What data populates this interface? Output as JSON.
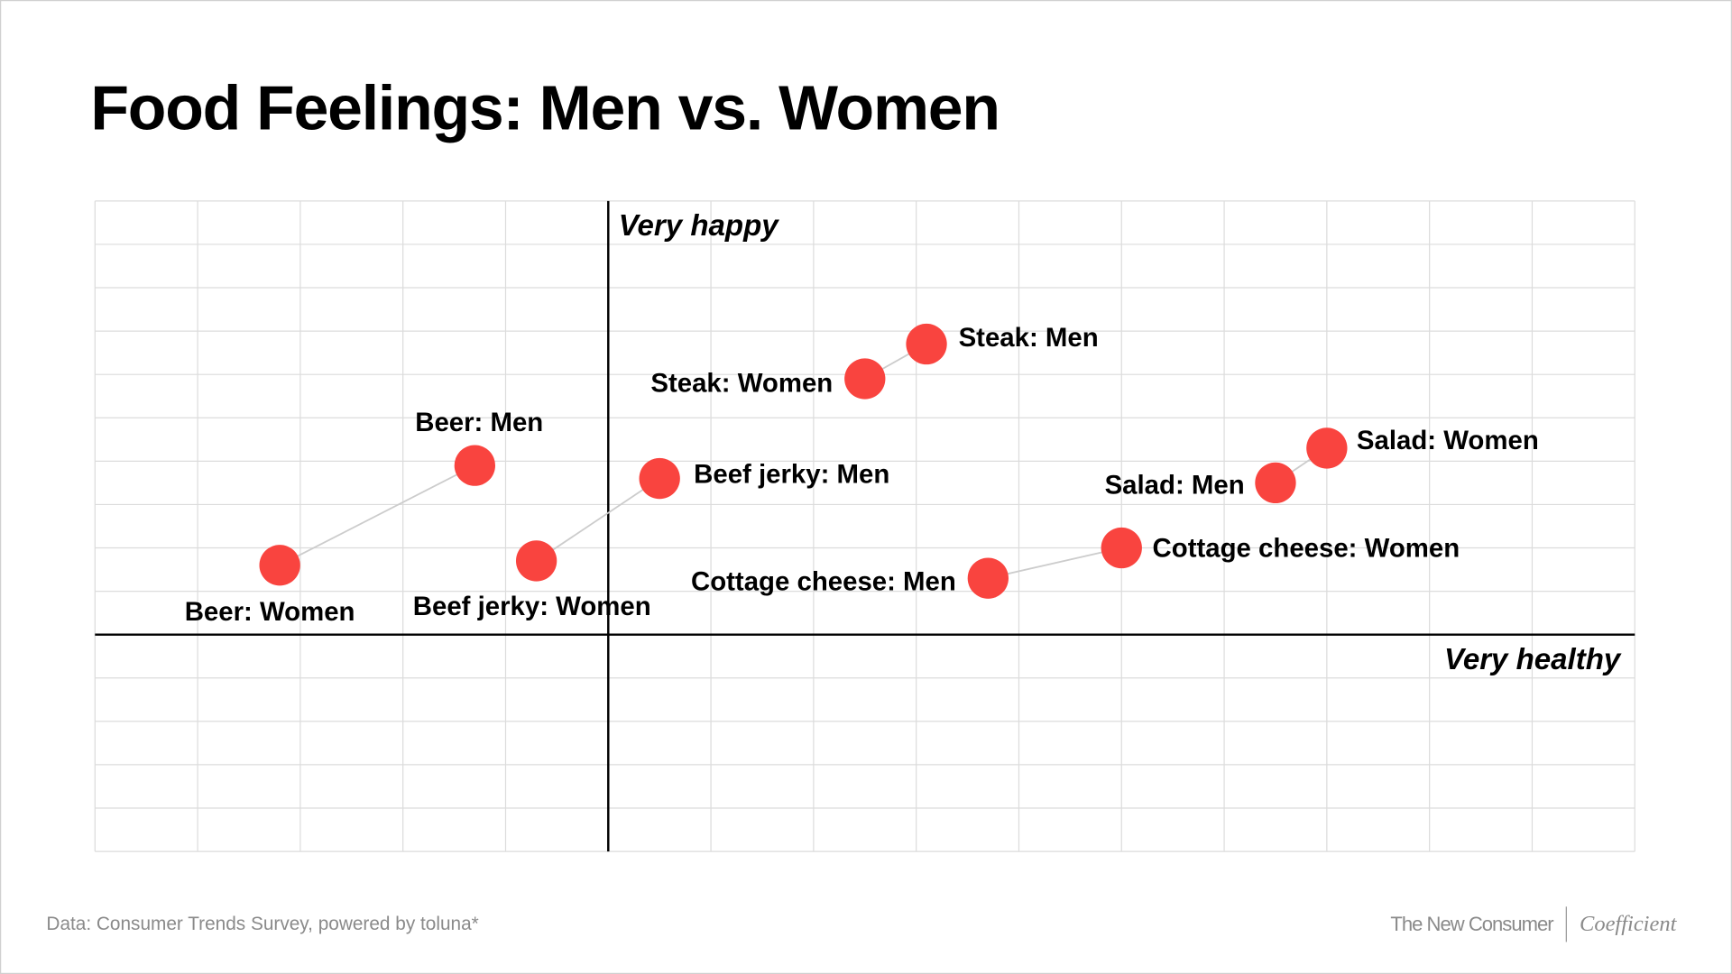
{
  "chart_data": {
    "type": "scatter",
    "title": "Food Feelings: Men vs. Women",
    "xlabel": "Very healthy",
    "ylabel": "Very happy",
    "xlim": [
      -5,
      10
    ],
    "ylim": [
      -5,
      10
    ],
    "grid": true,
    "axis_ticks_labeled": false,
    "marker_color": "#f9443f",
    "connector_color": "#cccccc",
    "points": [
      {
        "label": "Beer: Women",
        "x": -3.2,
        "y": 1.6
      },
      {
        "label": "Beer: Men",
        "x": -1.3,
        "y": 3.9
      },
      {
        "label": "Beef jerky: Women",
        "x": -0.7,
        "y": 1.7
      },
      {
        "label": "Beef jerky: Men",
        "x": 0.5,
        "y": 3.6
      },
      {
        "label": "Steak: Women",
        "x": 2.5,
        "y": 5.9
      },
      {
        "label": "Steak: Men",
        "x": 3.1,
        "y": 6.7
      },
      {
        "label": "Cottage cheese: Men",
        "x": 3.7,
        "y": 1.3
      },
      {
        "label": "Cottage cheese: Women",
        "x": 5.0,
        "y": 2.0
      },
      {
        "label": "Salad: Men",
        "x": 6.5,
        "y": 3.5
      },
      {
        "label": "Salad: Women",
        "x": 7.0,
        "y": 4.3
      }
    ],
    "pairs": [
      [
        0,
        1
      ],
      [
        2,
        3
      ],
      [
        4,
        5
      ],
      [
        6,
        7
      ],
      [
        8,
        9
      ]
    ]
  },
  "footer": {
    "source": "Data: Consumer Trends Survey, powered by toluna*",
    "brand_1": "The New Consumer",
    "brand_2": "Coefficient"
  }
}
